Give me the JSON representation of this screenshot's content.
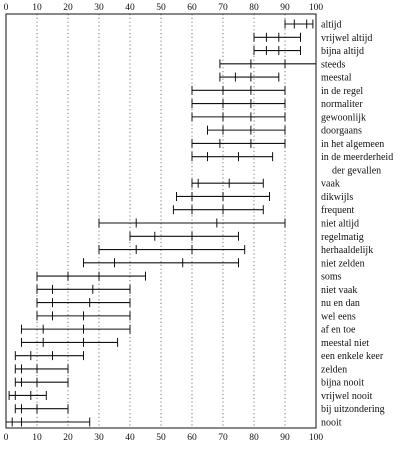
{
  "chart_data": {
    "type": "range",
    "xlim": [
      0,
      100
    ],
    "x_ticks": [
      0,
      10,
      20,
      30,
      40,
      50,
      60,
      70,
      80,
      90,
      100
    ],
    "grid": "vertical dotted",
    "colors": {
      "line": "#111111",
      "grid": "#555555"
    },
    "rows": [
      {
        "label": "altijd",
        "min": 90,
        "max": 99,
        "marks": [
          93,
          97
        ]
      },
      {
        "label": "vrijwel altijd",
        "min": 80,
        "max": 95,
        "marks": [
          84,
          88
        ]
      },
      {
        "label": "bijna altijd",
        "min": 80,
        "max": 95,
        "marks": [
          84,
          88
        ]
      },
      {
        "label": "steeds",
        "min": 69,
        "max": 100,
        "marks": [
          79,
          90
        ]
      },
      {
        "label": "meestal",
        "min": 69,
        "max": 88,
        "marks": [
          74,
          79
        ]
      },
      {
        "label": "in de regel",
        "min": 60,
        "max": 90,
        "marks": [
          70,
          79
        ]
      },
      {
        "label": "normaliter",
        "min": 60,
        "max": 90,
        "marks": [
          70,
          79
        ]
      },
      {
        "label": "gewoonlijk",
        "min": 60,
        "max": 90,
        "marks": [
          70,
          79
        ]
      },
      {
        "label": "doorgaans",
        "min": 65,
        "max": 90,
        "marks": [
          70,
          79
        ]
      },
      {
        "label": "in het algemeen",
        "min": 60,
        "max": 90,
        "marks": [
          69,
          79
        ]
      },
      {
        "label": "in de meerderheid",
        "label2": "der gevallen",
        "min": 60,
        "max": 86,
        "marks": [
          65,
          75
        ]
      },
      {
        "label": "vaak",
        "min": 60,
        "max": 83,
        "marks": [
          62,
          72
        ]
      },
      {
        "label": "dikwijls",
        "min": 55,
        "max": 85,
        "marks": [
          60,
          70
        ]
      },
      {
        "label": "frequent",
        "min": 54,
        "max": 83,
        "marks": [
          60,
          70
        ]
      },
      {
        "label": "niet altijd",
        "min": 30,
        "max": 90,
        "marks": [
          42,
          68
        ]
      },
      {
        "label": "regelmatig",
        "min": 40,
        "max": 75,
        "marks": [
          48,
          60
        ]
      },
      {
        "label": "herhaaldelijk",
        "min": 30,
        "max": 77,
        "marks": [
          42,
          60
        ]
      },
      {
        "label": "niet zelden",
        "min": 25,
        "max": 75,
        "marks": [
          35,
          57
        ]
      },
      {
        "label": "soms",
        "min": 10,
        "max": 45,
        "marks": [
          20,
          30
        ]
      },
      {
        "label": "niet vaak",
        "min": 10,
        "max": 40,
        "marks": [
          15,
          28
        ]
      },
      {
        "label": "nu en dan",
        "min": 10,
        "max": 40,
        "marks": [
          15,
          27
        ]
      },
      {
        "label": "wel eens",
        "min": 10,
        "max": 40,
        "marks": [
          15,
          25
        ]
      },
      {
        "label": "af en toe",
        "min": 5,
        "max": 40,
        "marks": [
          12,
          25
        ]
      },
      {
        "label": "meestal niet",
        "min": 5,
        "max": 36,
        "marks": [
          12,
          25
        ]
      },
      {
        "label": "een enkele keer",
        "min": 3,
        "max": 25,
        "marks": [
          8,
          15
        ]
      },
      {
        "label": "zelden",
        "min": 3,
        "max": 20,
        "marks": [
          5,
          10
        ]
      },
      {
        "label": "bijna nooit",
        "min": 3,
        "max": 20,
        "marks": [
          5,
          10
        ]
      },
      {
        "label": "vrijwel nooit",
        "min": 1,
        "max": 13,
        "marks": [
          3,
          8
        ]
      },
      {
        "label": "bij uitzondering",
        "min": 3,
        "max": 20,
        "marks": [
          5,
          10
        ]
      },
      {
        "label": "nooit",
        "min": 0,
        "max": 27,
        "marks": [
          2,
          5
        ]
      }
    ]
  }
}
